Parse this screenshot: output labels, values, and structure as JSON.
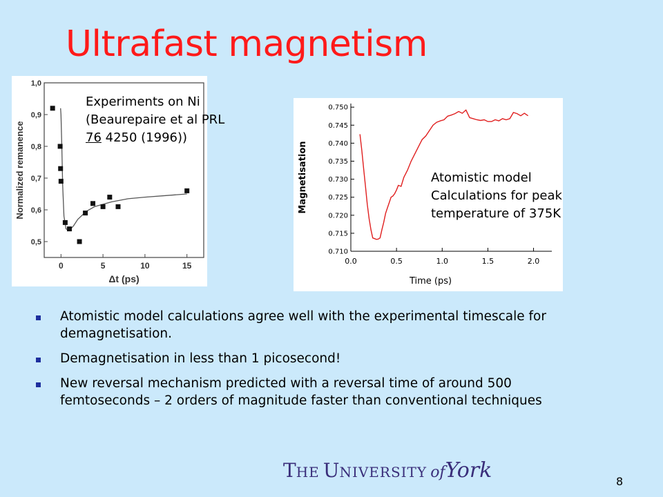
{
  "title": "Ultrafast magnetism",
  "experiment_caption": {
    "line1": "Experiments on Ni",
    "line2": "(Beaurepaire et al PRL",
    "line3_underlined": "76",
    "line3_rest": " 4250 (1996))"
  },
  "model_caption": {
    "line1": "Atomistic model",
    "line2": "Calculations for peak",
    "line3": "temperature of 375K"
  },
  "bullets": [
    "Atomistic model calculations agree well with the experimental timescale for demagnetisation.",
    "Demagnetisation in less than 1 picosecond!",
    "New reversal mechanism predicted with a reversal time of around 500 femtoseconds – 2 orders of magnitude faster than conventional techniques"
  ],
  "logo": {
    "the": "T",
    "he": "HE",
    "u": "U",
    "niversity": "NIVERSITY",
    "of": "of",
    "york": "York"
  },
  "page_number": "8",
  "chart_data": [
    {
      "type": "scatter",
      "xlabel": "Δt (ps)",
      "ylabel": "Normalized remanence",
      "xlim": [
        -2,
        17
      ],
      "ylim": [
        0.45,
        1.0
      ],
      "xticks": [
        "0",
        "5",
        "10",
        "15"
      ],
      "xtick_values": [
        0,
        5,
        10,
        15
      ],
      "yticks": [
        "0,5",
        "0,6",
        "0,7",
        "0,8",
        "0,9",
        "1,0"
      ],
      "ytick_values": [
        0.5,
        0.6,
        0.7,
        0.8,
        0.9,
        1.0
      ],
      "points": [
        {
          "x": -1.0,
          "y": 0.92
        },
        {
          "x": -0.1,
          "y": 0.8
        },
        {
          "x": -0.05,
          "y": 0.73
        },
        {
          "x": 0.0,
          "y": 0.69
        },
        {
          "x": 0.5,
          "y": 0.56
        },
        {
          "x": 1.0,
          "y": 0.54
        },
        {
          "x": 2.2,
          "y": 0.5
        },
        {
          "x": 2.9,
          "y": 0.59
        },
        {
          "x": 3.8,
          "y": 0.62
        },
        {
          "x": 5.0,
          "y": 0.61
        },
        {
          "x": 5.8,
          "y": 0.64
        },
        {
          "x": 6.8,
          "y": 0.61
        },
        {
          "x": 15.0,
          "y": 0.66
        }
      ],
      "fit_curve": [
        {
          "x": -0.05,
          "y": 0.92
        },
        {
          "x": 0.0,
          "y": 0.9
        },
        {
          "x": 0.1,
          "y": 0.8
        },
        {
          "x": 0.2,
          "y": 0.68
        },
        {
          "x": 0.35,
          "y": 0.58
        },
        {
          "x": 0.6,
          "y": 0.54
        },
        {
          "x": 1.0,
          "y": 0.535
        },
        {
          "x": 1.5,
          "y": 0.55
        },
        {
          "x": 2.0,
          "y": 0.57
        },
        {
          "x": 3.0,
          "y": 0.595
        },
        {
          "x": 4.0,
          "y": 0.61
        },
        {
          "x": 6.0,
          "y": 0.625
        },
        {
          "x": 8.0,
          "y": 0.635
        },
        {
          "x": 10.0,
          "y": 0.64
        },
        {
          "x": 12.5,
          "y": 0.645
        },
        {
          "x": 15.0,
          "y": 0.65
        }
      ]
    },
    {
      "type": "line",
      "xlabel": "Time (ps)",
      "ylabel": "Magnetisation",
      "xlim": [
        0.0,
        2.2
      ],
      "ylim": [
        0.71,
        0.751
      ],
      "xticks": [
        "0.0",
        "0.5",
        "1.0",
        "1.5",
        "2.0"
      ],
      "xtick_values": [
        0.0,
        0.5,
        1.0,
        1.5,
        2.0
      ],
      "yticks": [
        "0.710",
        "0.715",
        "0.720",
        "0.725",
        "0.730",
        "0.735",
        "0.740",
        "0.745",
        "0.750"
      ],
      "ytick_values": [
        0.71,
        0.715,
        0.72,
        0.725,
        0.73,
        0.735,
        0.74,
        0.745,
        0.75
      ],
      "line_color": "#e01f1f",
      "series": [
        {
          "x": [
            0.1,
            0.12,
            0.14,
            0.16,
            0.18,
            0.2,
            0.22,
            0.24,
            0.26,
            0.28,
            0.3,
            0.32,
            0.34,
            0.36,
            0.38,
            0.4,
            0.42,
            0.44,
            0.46,
            0.48,
            0.5,
            0.52,
            0.55,
            0.58,
            0.62,
            0.66,
            0.7,
            0.74,
            0.78,
            0.82,
            0.86,
            0.9,
            0.94,
            0.98,
            1.02,
            1.06,
            1.1,
            1.14,
            1.18,
            1.22,
            1.26,
            1.3,
            1.34,
            1.38,
            1.42,
            1.46,
            1.5,
            1.54,
            1.58,
            1.62,
            1.66,
            1.7,
            1.74,
            1.78,
            1.82,
            1.86,
            1.9,
            1.94
          ],
          "y": [
            0.7425,
            0.738,
            0.733,
            0.728,
            0.723,
            0.719,
            0.716,
            0.7137,
            0.7135,
            0.7133,
            0.7134,
            0.7137,
            0.716,
            0.718,
            0.7205,
            0.722,
            0.7235,
            0.725,
            0.7253,
            0.726,
            0.727,
            0.7283,
            0.728,
            0.7305,
            0.7325,
            0.735,
            0.737,
            0.739,
            0.741,
            0.742,
            0.7435,
            0.745,
            0.7458,
            0.7462,
            0.7465,
            0.7475,
            0.7478,
            0.7482,
            0.7488,
            0.7483,
            0.7492,
            0.7471,
            0.7468,
            0.7465,
            0.7463,
            0.7465,
            0.746,
            0.746,
            0.7465,
            0.7462,
            0.7468,
            0.7465,
            0.7468,
            0.7485,
            0.7482,
            0.7476,
            0.7483,
            0.7476
          ]
        }
      ]
    }
  ]
}
